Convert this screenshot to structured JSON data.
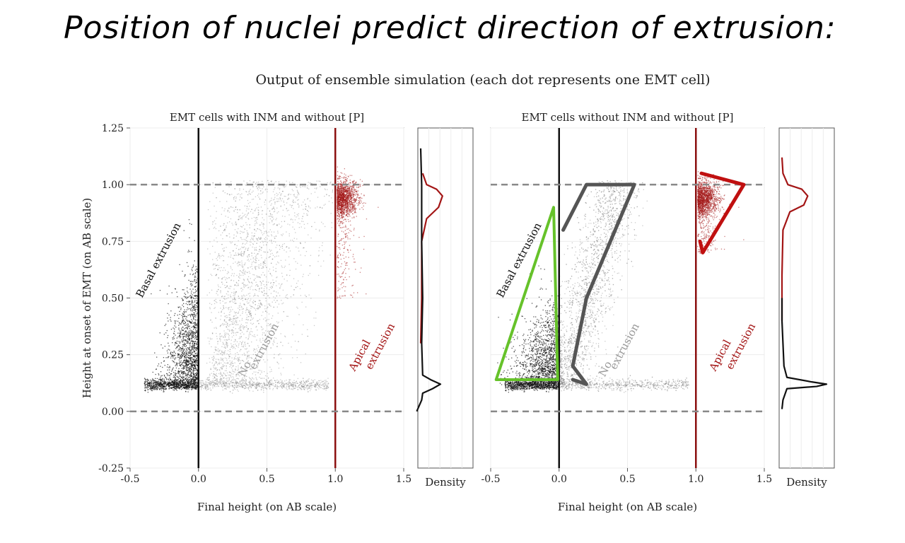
{
  "heading": "Position of nuclei predict direction of extrusion:",
  "subtitle": "Output of ensemble simulation (each dot represents one EMT cell)",
  "y_axis_label": "Height at onset of EMT (on AB scale)",
  "density_label": "Density",
  "region_labels": {
    "basal": "Basal extrusion",
    "no_1": "No",
    "no_2": "extrusion",
    "apical_1": "Apical",
    "apical_2": "extrusion"
  },
  "colors": {
    "basal": "#111111",
    "none": "#9a9a9a",
    "apical": "#a31515",
    "green_outline": "#66c22a",
    "grey_outline": "#555555",
    "red_outline": "#c01010",
    "dashed": "#888888"
  },
  "chart_data": [
    {
      "type": "scatter",
      "title": "EMT cells with INM and without [P]",
      "xlabel": "Final height (on AB scale)",
      "ylabel": "Height at onset of EMT (on AB scale)",
      "xlim": [
        -0.5,
        1.5
      ],
      "ylim": [
        -0.25,
        1.25
      ],
      "x_ticks": [
        "-0.5",
        "0.0",
        "0.5",
        "1.0",
        "1.5"
      ],
      "y_ticks": [
        "-0.25",
        "0.00",
        "0.25",
        "0.50",
        "0.75",
        "1.00",
        "1.25"
      ],
      "vertical_lines": [
        {
          "x": 0.0,
          "color": "black"
        },
        {
          "x": 1.0,
          "color": "darkred"
        }
      ],
      "dashed_lines_y": [
        0.0,
        1.0
      ],
      "series": [
        {
          "name": "Basal extrusion",
          "x_range": [
            -0.4,
            0.0
          ],
          "y_range": [
            0.1,
            0.85
          ]
        },
        {
          "name": "No extrusion",
          "x_range": [
            0.0,
            1.0
          ],
          "y_range": [
            0.1,
            1.0
          ]
        },
        {
          "name": "Apical extrusion",
          "x_range": [
            1.0,
            1.25
          ],
          "y_range": [
            0.5,
            1.05
          ]
        }
      ],
      "density": {
        "basal_curve": [
          [
            -0.04,
            0.0
          ],
          [
            0.01,
            0.05
          ],
          [
            0.02,
            0.08
          ],
          [
            0.12,
            0.1
          ],
          [
            0.2,
            0.12
          ],
          [
            0.1,
            0.14
          ],
          [
            0.02,
            0.16
          ],
          [
            0.01,
            0.3
          ],
          [
            0.02,
            0.5
          ],
          [
            0.01,
            0.75
          ],
          [
            0.01,
            1.0
          ],
          [
            0.0,
            1.16
          ]
        ],
        "apical_curve": [
          [
            0.0,
            0.3
          ],
          [
            0.01,
            0.5
          ],
          [
            0.01,
            0.75
          ],
          [
            0.06,
            0.85
          ],
          [
            0.18,
            0.9
          ],
          [
            0.22,
            0.95
          ],
          [
            0.16,
            0.98
          ],
          [
            0.06,
            1.0
          ],
          [
            0.02,
            1.05
          ]
        ]
      }
    },
    {
      "type": "scatter",
      "title": "EMT cells without INM and without [P]",
      "xlabel": "Final height (on AB scale)",
      "ylabel": "",
      "xlim": [
        -0.5,
        1.5
      ],
      "ylim": [
        -0.25,
        1.25
      ],
      "x_ticks": [
        "-0.5",
        "0.0",
        "0.5",
        "1.0",
        "1.5"
      ],
      "vertical_lines": [
        {
          "x": 0.0,
          "color": "black"
        },
        {
          "x": 1.0,
          "color": "darkred"
        }
      ],
      "dashed_lines_y": [
        0.0,
        1.0
      ],
      "series": [
        {
          "name": "Basal extrusion",
          "x_range": [
            -0.45,
            0.0
          ],
          "y_range": [
            0.1,
            0.7
          ]
        },
        {
          "name": "No extrusion",
          "x_range": [
            0.0,
            0.6
          ],
          "y_range": [
            0.1,
            1.0
          ]
        },
        {
          "name": "Apical extrusion",
          "x_range": [
            1.0,
            1.3
          ],
          "y_range": [
            0.7,
            1.05
          ]
        }
      ],
      "density": {
        "basal_curve": [
          [
            0.0,
            0.01
          ],
          [
            0.01,
            0.05
          ],
          [
            0.05,
            0.1
          ],
          [
            0.35,
            0.11
          ],
          [
            0.45,
            0.12
          ],
          [
            0.3,
            0.13
          ],
          [
            0.05,
            0.15
          ],
          [
            0.02,
            0.2
          ],
          [
            0.01,
            0.3
          ],
          [
            0.0,
            0.4
          ],
          [
            0.0,
            0.5
          ]
        ],
        "apical_curve": [
          [
            0.0,
            0.4
          ],
          [
            0.0,
            0.6
          ],
          [
            0.01,
            0.8
          ],
          [
            0.08,
            0.88
          ],
          [
            0.22,
            0.91
          ],
          [
            0.26,
            0.95
          ],
          [
            0.2,
            0.98
          ],
          [
            0.06,
            1.0
          ],
          [
            0.01,
            1.05
          ],
          [
            0.0,
            1.12
          ]
        ]
      }
    }
  ]
}
